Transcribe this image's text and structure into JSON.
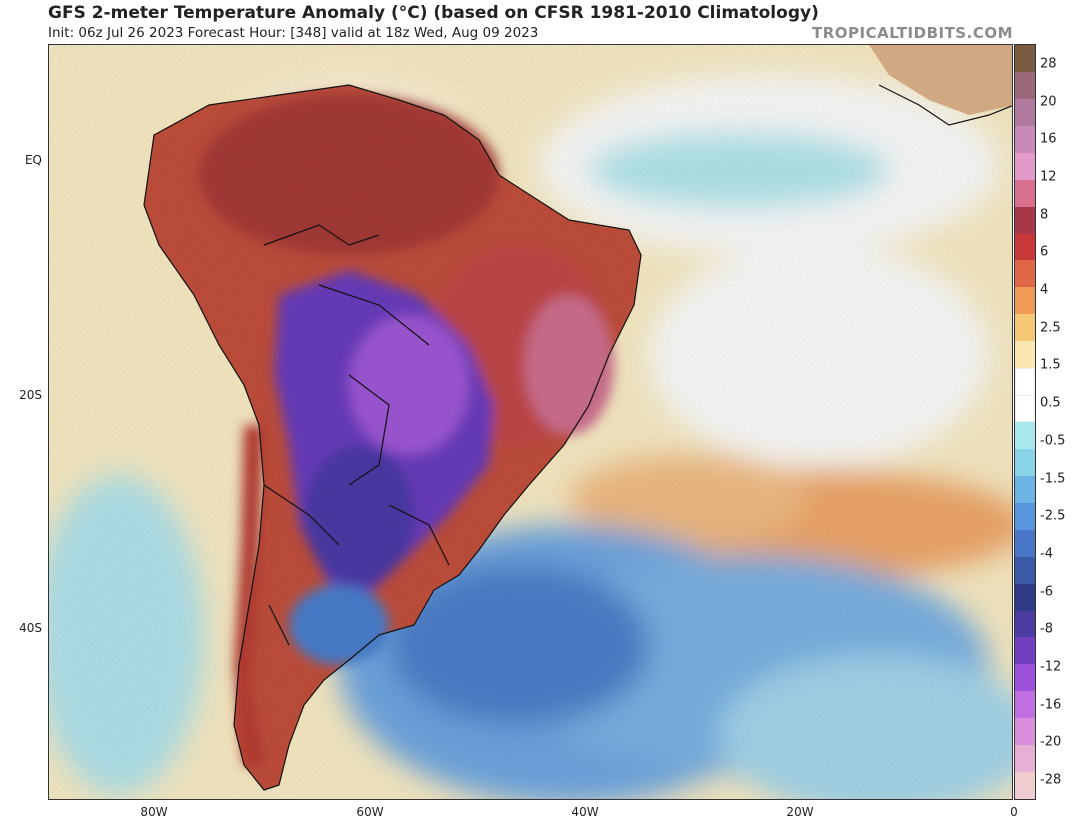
{
  "header": {
    "title": "GFS 2-meter Temperature Anomaly (°C) (based on CFSR 1981-2010 Climatology)",
    "subtitle": "Init: 06z Jul 26 2023   Forecast Hour: [348]   valid at 18z Wed, Aug 09 2023",
    "brand": "TROPICALTIDBITS.COM"
  },
  "map": {
    "lat_labels": [
      "EQ",
      "20S",
      "40S"
    ],
    "lon_labels": [
      "80W",
      "60W",
      "40W",
      "20W",
      "0"
    ]
  },
  "colorbar": {
    "labels": [
      "28",
      "20",
      "16",
      "12",
      "8",
      "6",
      "4",
      "2.5",
      "1.5",
      "0.5",
      "-0.5",
      "-1.5",
      "-2.5",
      "-4",
      "-6",
      "-8",
      "-12",
      "-16",
      "-20",
      "-28"
    ],
    "colors": [
      "#7a5a40",
      "#9a6a7a",
      "#b07a9e",
      "#c98ab8",
      "#e29ac8",
      "#d8708e",
      "#a83848",
      "#c83838",
      "#e06848",
      "#f09a58",
      "#f5c878",
      "#fae8b0",
      "#ffffff",
      "#ffffff",
      "#a8e8ec",
      "#88d4e6",
      "#6cb4e4",
      "#5a94dc",
      "#4a76c8",
      "#3a5aa8",
      "#303c88",
      "#4a3ca0",
      "#7040c0",
      "#9a50d8",
      "#c070e0",
      "#d890dc",
      "#e6b0d4",
      "#f0ccd0"
    ]
  }
}
